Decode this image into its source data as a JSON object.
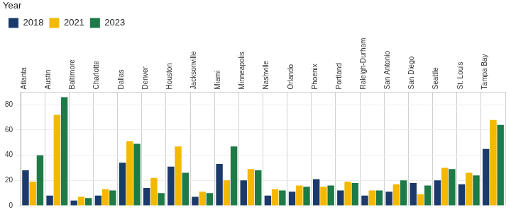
{
  "chart_data": {
    "type": "bar",
    "legend_title": "Year",
    "categories": [
      "Atlanta",
      "Austin",
      "Baltimore",
      "Charlotte",
      "Dallas",
      "Denver",
      "Houston",
      "Jacksonville",
      "Miami",
      "Minneapolis",
      "Nashville",
      "Orlando",
      "Phoenix",
      "Portland",
      "Raleigh-Durham",
      "San Antonio",
      "San Diego",
      "Seattle",
      "St. Louis",
      "Tampa Bay"
    ],
    "series": [
      {
        "name": "2018",
        "color": "#1b3a6b",
        "values": [
          28,
          8,
          4,
          8,
          34,
          14,
          31,
          7,
          33,
          20,
          8,
          11,
          21,
          12,
          8,
          11,
          18,
          20,
          17,
          45
        ]
      },
      {
        "name": "2021",
        "color": "#f5b800",
        "values": [
          19,
          72,
          7,
          13,
          51,
          22,
          47,
          11,
          20,
          29,
          13,
          16,
          15,
          19,
          12,
          17,
          9,
          30,
          26,
          68
        ]
      },
      {
        "name": "2023",
        "color": "#1e7a46",
        "values": [
          40,
          86,
          6,
          12,
          49,
          10,
          26,
          10,
          47,
          28,
          12,
          15,
          16,
          18,
          12,
          20,
          16,
          29,
          24,
          64
        ]
      }
    ],
    "ylim": [
      0,
      90
    ],
    "yticks": [
      0,
      20,
      40,
      60,
      80
    ],
    "grid": true,
    "legend": "top-left"
  }
}
